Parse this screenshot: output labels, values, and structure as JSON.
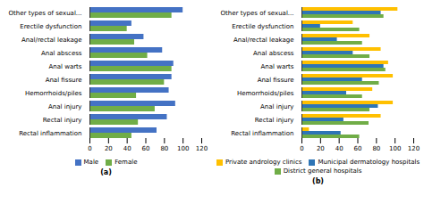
{
  "chart_data": [
    {
      "type": "bar",
      "orientation": "horizontal",
      "title": "(a)",
      "categories": [
        "Other types of sexual...",
        "Erectile dysfunction",
        "Anal/rectal leakage",
        "Anal abscess",
        "Anal warts",
        "Anal fissure",
        "Hemorrhoids/piles",
        "Anal injury",
        "Rectal injury",
        "Rectal inflammation"
      ],
      "series": [
        {
          "name": "Male",
          "color": "#4472C4",
          "values": [
            100,
            45,
            58,
            78,
            90,
            88,
            85,
            92,
            83,
            72
          ]
        },
        {
          "name": "Female",
          "color": "#70AD47",
          "values": [
            88,
            40,
            48,
            62,
            88,
            80,
            50,
            70,
            52,
            45
          ]
        }
      ],
      "xlim": [
        0,
        120
      ],
      "xticks": [
        0,
        20,
        40,
        60,
        80,
        100,
        120
      ],
      "grid": false,
      "legend": "bottom"
    },
    {
      "type": "bar",
      "orientation": "horizontal",
      "title": "(b)",
      "categories": [
        "Other types of sexual...",
        "Erectile dysfunction",
        "Anal/rectal leakage",
        "Anal abscess",
        "Anal warts",
        "Anal fissure",
        "Hemorrhoids/piles",
        "Anal injury",
        "Rectal injury",
        "Rectal inflammation"
      ],
      "series": [
        {
          "name": "Private andrology clinics",
          "color": "#FFC000",
          "values": [
            103,
            55,
            73,
            85,
            93,
            98,
            76,
            98,
            85,
            8
          ]
        },
        {
          "name": "Municipal dermatology hospitals",
          "color": "#2E75B6",
          "values": [
            85,
            20,
            38,
            55,
            88,
            65,
            48,
            82,
            45,
            42
          ]
        },
        {
          "name": "District general hospitals",
          "color": "#70AD47",
          "values": [
            88,
            62,
            65,
            73,
            90,
            83,
            65,
            73,
            72,
            62
          ]
        }
      ],
      "xlim": [
        0,
        120
      ],
      "xticks": [
        0,
        20,
        40,
        60,
        80,
        100,
        120
      ],
      "grid": false,
      "legend": "bottom"
    }
  ]
}
